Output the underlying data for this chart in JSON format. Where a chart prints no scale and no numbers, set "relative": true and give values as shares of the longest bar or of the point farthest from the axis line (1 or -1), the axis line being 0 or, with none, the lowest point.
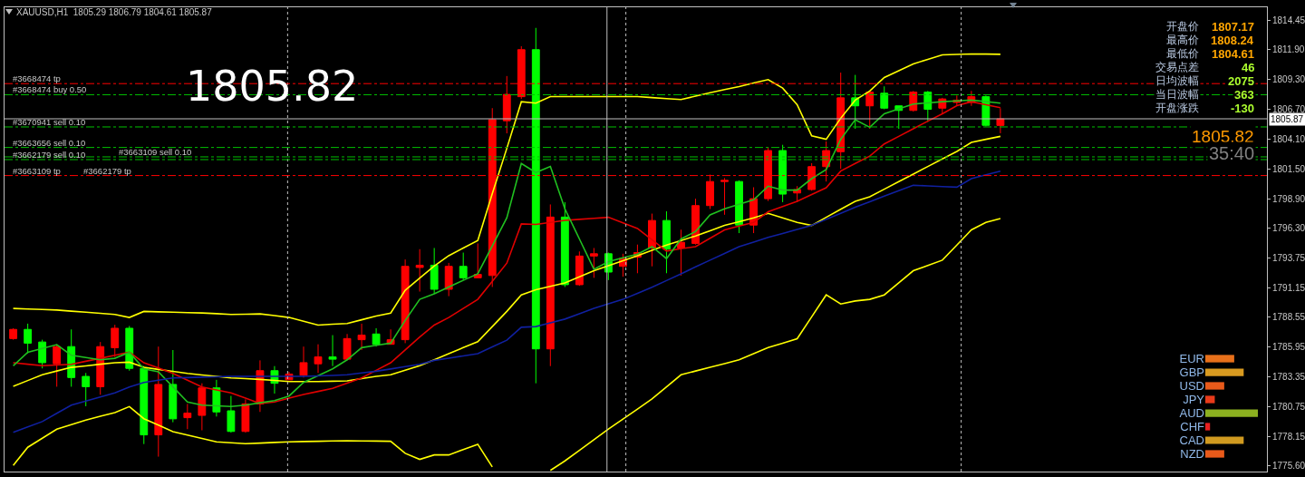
{
  "chart_data": [
    {
      "type": "candlestick",
      "title": "XAUUSD,H1  1805.29 1806.79 1804.61 1805.87",
      "categories": [
        null,
        null,
        null,
        null,
        null,
        null,
        null,
        null,
        null,
        null,
        null,
        null,
        null,
        null,
        null,
        null,
        null,
        null,
        null,
        null,
        null,
        null,
        null,
        null,
        null,
        null,
        null,
        null,
        null,
        null,
        null,
        null,
        null,
        null,
        null,
        null,
        null,
        null,
        null,
        null,
        null,
        null,
        null,
        null,
        null,
        null,
        null,
        null,
        null,
        null,
        null,
        null,
        null,
        null,
        null,
        null,
        null,
        null,
        null,
        null,
        null,
        null,
        null,
        null,
        null,
        null,
        null,
        null,
        null
      ],
      "ohlc": [
        [
          1786.7,
          1787.6,
          1786.6,
          1787.5
        ],
        [
          1787.5,
          1788.0,
          1785.4,
          1786.3
        ],
        [
          1786.4,
          1786.6,
          1784.1,
          1784.6
        ],
        [
          1784.5,
          1786.2,
          1782.5,
          1786.0
        ],
        [
          1786.0,
          1787.5,
          1782.5,
          1783.3
        ],
        [
          1783.4,
          1783.7,
          1780.8,
          1782.5
        ],
        [
          1782.5,
          1786.4,
          1781.8,
          1786.0
        ],
        [
          1785.9,
          1787.9,
          1785.1,
          1787.6
        ],
        [
          1787.6,
          1787.8,
          1783.9,
          1784.1
        ],
        [
          1784.1,
          1784.3,
          1777.5,
          1778.3
        ],
        [
          1778.3,
          1786.0,
          1776.4,
          1782.7
        ],
        [
          1782.7,
          1785.7,
          1779.4,
          1779.7
        ],
        [
          1779.8,
          1781.0,
          1778.8,
          1780.2
        ],
        [
          1780.0,
          1782.8,
          1778.7,
          1782.4
        ],
        [
          1782.4,
          1783.1,
          1779.9,
          1780.3
        ],
        [
          1780.4,
          1781.7,
          1778.5,
          1778.6
        ],
        [
          1778.6,
          1781.4,
          1778.5,
          1781.0
        ],
        [
          1781.0,
          1784.8,
          1780.3,
          1783.9
        ],
        [
          1783.9,
          1784.3,
          1781.9,
          1782.8
        ],
        [
          1783.1,
          1783.8,
          1783.1,
          1783.6
        ],
        [
          1783.5,
          1786.0,
          1783.3,
          1784.6
        ],
        [
          1784.5,
          1786.2,
          1783.7,
          1785.1
        ],
        [
          1785.1,
          1787.0,
          1784.3,
          1784.9
        ],
        [
          1784.9,
          1787.1,
          1784.8,
          1786.7
        ],
        [
          1786.6,
          1788.0,
          1785.7,
          1787.0
        ],
        [
          1787.1,
          1787.6,
          1786.0,
          1786.2
        ],
        [
          1786.2,
          1787.5,
          1786.2,
          1786.6
        ],
        [
          1786.6,
          1793.6,
          1786.3,
          1793.0
        ],
        [
          1792.9,
          1794.5,
          1790.8,
          1793.1
        ],
        [
          1793.1,
          1794.6,
          1790.6,
          1791.0
        ],
        [
          1791.0,
          1793.3,
          1790.4,
          1793.0
        ],
        [
          1793.0,
          1794.2,
          1791.8,
          1792.0
        ],
        [
          1792.0,
          1795.0,
          1792.0,
          1792.3
        ],
        [
          1792.2,
          1806.8,
          1791.2,
          1805.8
        ],
        [
          1805.7,
          1809.6,
          1804.6,
          1808.0
        ],
        [
          1807.8,
          1812.2,
          1807.6,
          1811.9
        ],
        [
          1811.9,
          1813.8,
          1782.8,
          1785.8
        ],
        [
          1785.8,
          1798.4,
          1784.3,
          1797.3
        ],
        [
          1797.3,
          1798.6,
          1791.2,
          1791.4
        ],
        [
          1791.4,
          1794.3,
          1791.3,
          1793.9
        ],
        [
          1793.9,
          1794.6,
          1792.0,
          1794.1
        ],
        [
          1794.1,
          1794.2,
          1791.8,
          1792.5
        ],
        [
          1793.0,
          1794.1,
          1792.1,
          1793.7
        ],
        [
          1793.8,
          1794.9,
          1792.4,
          1794.2
        ],
        [
          1794.6,
          1797.6,
          1793.0,
          1797.0
        ],
        [
          1797.0,
          1797.8,
          1792.4,
          1794.5
        ],
        [
          1794.6,
          1796.2,
          1792.2,
          1795.1
        ],
        [
          1795.0,
          1798.9,
          1794.9,
          1798.3
        ],
        [
          1798.3,
          1801.0,
          1798.0,
          1800.4
        ],
        [
          1800.4,
          1800.7,
          1797.5,
          1800.5
        ],
        [
          1800.4,
          1800.5,
          1795.9,
          1796.6
        ],
        [
          1796.6,
          1799.9,
          1795.9,
          1798.9
        ],
        [
          1798.9,
          1803.4,
          1798.7,
          1803.1
        ],
        [
          1803.1,
          1803.6,
          1798.6,
          1799.3
        ],
        [
          1799.4,
          1800.0,
          1798.6,
          1799.7
        ],
        [
          1799.7,
          1802.0,
          1799.6,
          1801.7
        ],
        [
          1801.7,
          1803.9,
          1800.4,
          1803.1
        ],
        [
          1803.0,
          1809.9,
          1801.5,
          1807.7
        ],
        [
          1807.7,
          1809.7,
          1805.0,
          1807.0
        ],
        [
          1807.0,
          1808.3,
          1805.0,
          1808.2
        ],
        [
          1808.1,
          1808.7,
          1806.7,
          1806.8
        ],
        [
          1807.0,
          1807.0,
          1805.0,
          1806.6
        ],
        [
          1806.6,
          1808.3,
          1806.5,
          1808.2
        ],
        [
          1808.2,
          1808.3,
          1805.6,
          1806.7
        ],
        [
          1806.8,
          1807.7,
          1806.3,
          1807.6
        ],
        [
          1807.3,
          1807.9,
          1807.0,
          1807.5
        ],
        [
          1807.3,
          1808.3,
          1807.0,
          1807.8
        ],
        [
          1807.8,
          1807.9,
          1805.2,
          1805.3
        ],
        [
          1805.29,
          1806.79,
          1804.61,
          1805.87
        ]
      ],
      "colors": [
        "#ff0000",
        "#00ff00",
        "#00ff00",
        "#ff0000",
        "#00ff00",
        "#00ff00",
        "#ff0000",
        "#ff0000",
        "#00ff00",
        "#00ff00",
        "#ff0000",
        "#00ff00",
        "#ff0000",
        "#ff0000",
        "#00ff00",
        "#00ff00",
        "#ff0000",
        "#ff0000",
        "#00ff00",
        "#ff0000",
        "#ff0000",
        "#ff0000",
        "#00ff00",
        "#ff0000",
        "#ff0000",
        "#00ff00",
        "#ff0000",
        "#ff0000",
        "#ff0000",
        "#00ff00",
        "#ff0000",
        "#00ff00",
        "#ff0000",
        "#ff0000",
        "#ff0000",
        "#ff0000",
        "#00ff00",
        "#ff0000",
        "#00ff00",
        "#ff0000",
        "#ff0000",
        "#00ff00",
        "#ff0000",
        "#ff0000",
        "#ff0000",
        "#00ff00",
        "#ff0000",
        "#ff0000",
        "#ff0000",
        "#ff0000",
        "#00ff00",
        "#ff0000",
        "#ff0000",
        "#00ff00",
        "#ff0000",
        "#ff0000",
        "#ff0000",
        "#ff0000",
        "#00ff00",
        "#ff0000",
        "#00ff00",
        "#00ff00",
        "#ff0000",
        "#00ff00",
        "#ff0000",
        "#ff0000",
        "#ff0000",
        "#00ff00",
        "#ff0000"
      ],
      "series": [
        {
          "type": "line",
          "color": "#ffff00",
          "values": [
            1789.33,
            1789.28,
            1789.24,
            1789.19,
            1789.09,
            1789.0,
            1788.9,
            1788.8,
            1788.54,
            1789.07,
            1789.03,
            1789.0,
            1788.96,
            1788.93,
            1788.87,
            1788.8,
            1788.83,
            1788.85,
            1788.7,
            1788.54,
            1788.21,
            1787.88,
            1787.95,
            1788.01,
            1788.34,
            1788.67,
            1788.93,
            1790.91,
            1791.97,
            1793.02,
            1793.93,
            1794.6,
            1795.25,
            1799.34,
            1803.29,
            1807.36,
            1807.24,
            1807.81,
            1807.81,
            1807.81,
            1807.81,
            1807.81,
            1807.81,
            1807.81,
            1807.72,
            1807.63,
            1807.55,
            1807.85,
            1808.15,
            1808.42,
            1808.68,
            1808.99,
            1809.29,
            1808.55,
            1807.1,
            1804.39,
            1804.08,
            1805.92,
            1807.5,
            1808.29,
            1809.47,
            1810.07,
            1810.66,
            1811.06,
            1811.45,
            1811.49,
            1811.53,
            1811.52,
            1811.5
          ]
        },
        {
          "type": "line",
          "color": "#ffff00",
          "values": [
            1782.53,
            1783.04,
            1783.54,
            1783.87,
            1784.19,
            1784.32,
            1784.46,
            1784.59,
            1784.64,
            1784.19,
            1784.01,
            1783.84,
            1783.66,
            1783.53,
            1783.4,
            1783.27,
            1783.21,
            1783.14,
            1783.05,
            1782.95,
            1782.95,
            1782.95,
            1782.98,
            1783.01,
            1783.21,
            1783.4,
            1783.54,
            1783.94,
            1784.33,
            1784.85,
            1785.38,
            1785.91,
            1786.43,
            1787.75,
            1789.07,
            1790.51,
            1790.96,
            1791.26,
            1791.56,
            1792.09,
            1792.62,
            1793.06,
            1793.5,
            1793.93,
            1794.4,
            1794.86,
            1795.26,
            1795.65,
            1796.11,
            1796.57,
            1796.9,
            1797.23,
            1797.62,
            1797.23,
            1796.83,
            1796.57,
            1797.28,
            1797.98,
            1798.67,
            1799.07,
            1799.73,
            1800.39,
            1801.05,
            1801.71,
            1802.37,
            1803.02,
            1803.81,
            1804.08,
            1804.34
          ]
        },
        {
          "type": "line",
          "color": "#ffff00",
          "values": [
            1775.64,
            1777.22,
            1778.01,
            1778.8,
            1779.2,
            1779.59,
            1779.92,
            1780.24,
            1780.77,
            1779.71,
            1779.15,
            1778.58,
            1778.28,
            1777.99,
            1777.69,
            1777.61,
            1777.53,
            1777.58,
            1777.64,
            1777.69,
            1777.72,
            1777.74,
            1777.77,
            1777.79,
            1777.77,
            1777.76,
            1777.74,
            1776.69,
            1776.16,
            1776.55,
            1776.55,
            1777.02,
            1777.48,
            1775.5,
            null,
            null,
            null,
            1775.2,
            1776.03,
            1776.95,
            1777.88,
            1778.8,
            1779.68,
            1780.55,
            1781.43,
            1782.49,
            1783.54,
            1783.87,
            1784.19,
            1784.52,
            1784.85,
            1785.38,
            1785.91,
            1786.3,
            1786.69,
            1788.6,
            1790.51,
            1789.72,
            1789.98,
            1790.12,
            1790.51,
            1791.57,
            1792.62,
            1793.08,
            1793.54,
            1794.86,
            1796.18,
            1796.83,
            1797.17
          ]
        },
        {
          "type": "line",
          "color": "#e00000",
          "values": [
            1784.59,
            1784.46,
            1784.33,
            1784.39,
            1784.45,
            1784.72,
            1784.98,
            1785.25,
            1785.51,
            1784.59,
            1784.13,
            1783.66,
            1783.07,
            1782.48,
            1782.22,
            1781.96,
            1781.5,
            1781.03,
            1781.17,
            1781.5,
            1781.82,
            1782.09,
            1782.35,
            1782.81,
            1783.27,
            1783.93,
            1784.59,
            1785.71,
            1786.83,
            1787.88,
            1788.54,
            1789.33,
            1790.12,
            1791.7,
            1793.28,
            1796.7,
            1796.65,
            1796.83,
            1797.01,
            1797.1,
            1797.19,
            1797.28,
            1796.79,
            1796.3,
            1795.32,
            1794.33,
            1794.54,
            1794.72,
            1795.45,
            1796.18,
            1796.51,
            1796.83,
            1797.76,
            1798.22,
            1798.67,
            1799.27,
            1799.86,
            1801.31,
            1801.97,
            1802.62,
            1803.68,
            1804.34,
            1805.0,
            1805.66,
            1806.31,
            1807.02,
            1807.36,
            1807.1,
            1806.84
          ]
        },
        {
          "type": "line",
          "color": "#20c020",
          "values": [
            1784.33,
            1785.51,
            1785.84,
            1786.17,
            1785.25,
            1785.05,
            1784.85,
            1784.98,
            1785.51,
            1784.06,
            1783.8,
            1782.49,
            1781.17,
            1780.9,
            1780.84,
            1780.77,
            1780.9,
            1781.1,
            1781.29,
            1781.69,
            1782.87,
            1783.47,
            1784.06,
            1784.85,
            1785.91,
            1786.11,
            1786.3,
            1788.28,
            1790.12,
            1790.6,
            1791.2,
            1791.78,
            1792.35,
            1794.79,
            1797.23,
            1801.97,
            1801.18,
            1801.71,
            1798.02,
            1795.39,
            1792.75,
            1793.41,
            1793.74,
            1794.07,
            1794.72,
            1793.67,
            1795.39,
            1796.04,
            1797.49,
            1798.02,
            1798.42,
            1798.81,
            1799.99,
            1799.65,
            1799.65,
            1800.65,
            1801.44,
            1804.08,
            1805.78,
            1805.13,
            1806.31,
            1806.74,
            1807.16,
            1807.26,
            1807.36,
            1807.43,
            1807.5,
            1807.37,
            1807.24
          ]
        },
        {
          "type": "line",
          "color": "#1020a0",
          "values": [
            1778.53,
            1779.0,
            1779.46,
            1780.18,
            1780.9,
            1781.25,
            1781.61,
            1781.96,
            1782.48,
            1782.87,
            1783.07,
            1783.27,
            1783.3,
            1783.34,
            1783.37,
            1783.4,
            1783.4,
            1783.4,
            1783.4,
            1783.4,
            1783.4,
            1783.45,
            1783.49,
            1783.54,
            1783.7,
            1783.85,
            1784.05,
            1784.25,
            1784.45,
            1784.8,
            1784.99,
            1785.19,
            1785.38,
            1785.97,
            1786.56,
            1787.69,
            1787.75,
            1788.08,
            1788.4,
            1788.87,
            1789.33,
            1789.73,
            1790.12,
            1790.65,
            1791.17,
            1791.76,
            1792.35,
            1792.95,
            1793.54,
            1794.13,
            1794.72,
            1795.12,
            1795.52,
            1795.87,
            1796.22,
            1796.57,
            1797.1,
            1797.62,
            1798.15,
            1798.64,
            1799.12,
            1799.6,
            1800.07,
            1800.02,
            1799.96,
            1799.91,
            1800.65,
            1800.98,
            1801.31
          ]
        }
      ],
      "ylim": [
        1775.1,
        1815.6
      ],
      "yticks": [
        1814.45,
        {
          "value": 1811.9,
          "label": "1811.90"
        },
        {
          "value": 1809.3,
          "label": "1809.30"
        },
        {
          "value": 1806.7,
          "label": "1806.70"
        },
        {
          "value": 1804.1,
          "label": "1804.10"
        },
        {
          "value": 1801.5,
          "label": "1801.50"
        },
        {
          "value": 1798.9,
          "label": "1798.90"
        },
        {
          "value": 1796.3,
          "label": "1796.30"
        },
        1793.75,
        1791.15,
        1788.55,
        1785.95,
        1783.35,
        1780.75,
        1778.15,
        {
          "value": 1775.6,
          "label": "1775.60"
        }
      ],
      "tick_labels": "y",
      "ref_lines": [
        {
          "axis": "y",
          "value": 1808.94,
          "label": "#3668474 tp",
          "color": "#ff0000",
          "line_style": "dashed"
        },
        {
          "axis": "y",
          "value": 1807.97,
          "label": "#3668474 buy 0.50",
          "color": "#00c000",
          "line_style": "dashed"
        },
        {
          "axis": "y",
          "value": 1805.87,
          "label": "1805.87",
          "color": "#c0c0c0",
          "line_style": "solid"
        },
        {
          "axis": "y",
          "value": 1805.16,
          "label": "#3670941 sell 0.10",
          "color": "#00c000",
          "line_style": "dashed"
        },
        {
          "axis": "y",
          "value": 1803.37,
          "label": "#3663656 sell 0.10",
          "color": "#00c000",
          "line_style": "dashed"
        },
        {
          "axis": "y",
          "value": 1802.55,
          "label": "#3663109 sell 0.10",
          "color": "#00c000",
          "line_style": "dashed"
        },
        {
          "axis": "y",
          "value": 1802.31,
          "label": "#3662179 sell 0.10",
          "color": "#00c000",
          "line_style": "dashed"
        },
        {
          "axis": "y",
          "value": 1800.92,
          "label": "#3663109 tp",
          "color": "#ff0000",
          "line_style": "dashed"
        }
      ],
      "annotations": [
        {
          "text": "#3662179 tp",
          "y": 1800.92
        },
        "1805.82",
        "开盘价",
        "1807.17",
        "最高价",
        "1808.24",
        "最低价",
        "1804.61",
        "交易点差",
        "46",
        "日均波幅",
        "2075",
        "当日波幅",
        "363",
        "开盘涨跌",
        "-130",
        "1805.82",
        "35:40"
      ]
    },
    {
      "type": "bar",
      "orientation": "horizontal",
      "relative": true,
      "categories": [
        "EUR",
        "GBP",
        "USD",
        "JPY",
        "AUD",
        "CHF",
        "CAD",
        "NZD"
      ],
      "values": [
        0.55,
        0.73,
        0.36,
        0.18,
        1,
        0.09,
        0.73,
        0.36
      ],
      "colors": [
        "#e8701a",
        "#d89a20",
        "#e85a1a",
        "#e83a1a",
        "#8cb020",
        "#e82020",
        "#d09a20",
        "#e85a1a"
      ]
    }
  ]
}
